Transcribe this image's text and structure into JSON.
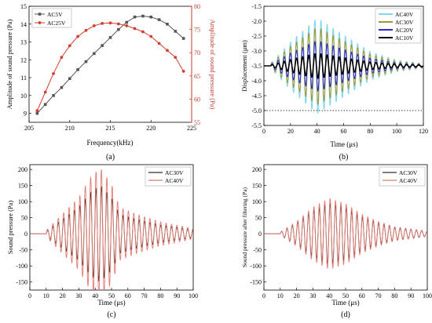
{
  "figure": {
    "background": "#ffffff"
  },
  "chart_data": [
    {
      "panel": "a",
      "type": "line",
      "caption": "(a)",
      "xlabel": "Frequency(kHz)",
      "ylabel": "Amplitude of sound pressure (Pa)",
      "ylabel_right": "Amplitude of sound pressure (Pa)",
      "xlim": [
        205,
        225
      ],
      "ylim": [
        8.5,
        15
      ],
      "ylim_right": [
        55,
        80
      ],
      "xticks": [
        "205",
        "210",
        "215",
        "220",
        "225"
      ],
      "yticks": [
        "9",
        "10",
        "11",
        "12",
        "13",
        "14",
        "15"
      ],
      "yticks_right": [
        "55",
        "60",
        "65",
        "70",
        "75",
        "80"
      ],
      "legend": "top-left",
      "series": [
        {
          "name": "AC5V",
          "axis": "left",
          "color": "#555555",
          "marker": "square",
          "x": [
            206,
            207,
            208,
            209,
            210,
            211,
            212,
            213,
            214,
            215,
            216,
            217,
            218,
            219,
            220,
            221,
            222,
            223,
            224
          ],
          "y": [
            9.0,
            9.5,
            10.0,
            10.45,
            10.95,
            11.45,
            11.9,
            12.35,
            12.8,
            13.25,
            13.7,
            14.1,
            14.4,
            14.45,
            14.4,
            14.25,
            14.0,
            13.6,
            13.2
          ]
        },
        {
          "name": "AC25V",
          "axis": "right",
          "color": "#d04030",
          "marker": "circle",
          "x": [
            206,
            207,
            208,
            209,
            210,
            211,
            212,
            213,
            214,
            215,
            216,
            217,
            218,
            219,
            220,
            221,
            222,
            223,
            224
          ],
          "y": [
            57.5,
            61.5,
            65.5,
            69.0,
            71.5,
            73.5,
            74.8,
            75.8,
            76.3,
            76.4,
            76.2,
            75.8,
            75.2,
            74.5,
            73.5,
            72.0,
            70.5,
            69.0,
            66.0
          ]
        }
      ]
    },
    {
      "panel": "b",
      "type": "line",
      "caption": "(b)",
      "xlabel": "Time (μs)",
      "ylabel": "Displacement (μm)",
      "xlim": [
        0,
        120
      ],
      "ylim": [
        -5.5,
        -1.5
      ],
      "xticks": [
        "0",
        "20",
        "40",
        "60",
        "80",
        "100",
        "120"
      ],
      "yticks": [
        "-1.5",
        "-2.0",
        "-2.5",
        "-3.0",
        "-3.5",
        "-4.0",
        "-4.5",
        "-5.0",
        "-5.5"
      ],
      "reference_line": {
        "y": -5.0,
        "style": "dotted"
      },
      "legend": "top-right",
      "signal": {
        "baseline": -3.5,
        "start": 5,
        "period": 4.6,
        "envelope": [
          [
            5,
            0.05
          ],
          [
            20,
            0.5
          ],
          [
            40,
            1.0
          ],
          [
            60,
            0.65
          ],
          [
            80,
            0.3
          ],
          [
            100,
            0.12
          ],
          [
            120,
            0.05
          ]
        ]
      },
      "series": [
        {
          "name": "AC40V",
          "color": "#7fd6f0",
          "amplitude": 1.6
        },
        {
          "name": "AC30V",
          "color": "#9b9a3a",
          "amplitude": 1.3
        },
        {
          "name": "AC20V",
          "color": "#2c2cc0",
          "amplitude": 0.85
        },
        {
          "name": "AC10V",
          "color": "#000000",
          "amplitude": 0.42
        }
      ]
    },
    {
      "panel": "c",
      "type": "line",
      "caption": "(c)",
      "xlabel": "Time (μs)",
      "ylabel": "Sound pressure (Pa)",
      "xlim": [
        0,
        100
      ],
      "ylim": [
        -175,
        215
      ],
      "xticks": [
        "0",
        "10",
        "20",
        "30",
        "40",
        "50",
        "60",
        "70",
        "80",
        "90",
        "100"
      ],
      "yticks": [
        "200",
        "150",
        "100",
        "50",
        "0",
        "-50",
        "-100",
        "-150"
      ],
      "legend": "top-right",
      "signal": {
        "start": 10,
        "period": 3.3,
        "envelope": [
          [
            10,
            0.05
          ],
          [
            20,
            0.3
          ],
          [
            30,
            0.55
          ],
          [
            37,
            0.85
          ],
          [
            43,
            1.0
          ],
          [
            50,
            0.75
          ],
          [
            55,
            0.4
          ],
          [
            65,
            0.3
          ],
          [
            80,
            0.18
          ],
          [
            100,
            0.08
          ]
        ]
      },
      "series": [
        {
          "name": "AC30V",
          "color": "#3a2a22",
          "amplitude": 150
        },
        {
          "name": "AC40V",
          "color": "#e07a72",
          "amplitude": 205
        }
      ]
    },
    {
      "panel": "d",
      "type": "line",
      "caption": "(d)",
      "xlabel": "Time (μs)",
      "ylabel": "Sound pressure after filtering (Pa)",
      "xlim": [
        0,
        100
      ],
      "ylim": [
        -175,
        215
      ],
      "xticks": [
        "0",
        "10",
        "20",
        "30",
        "40",
        "50",
        "60",
        "70",
        "80",
        "90",
        "100"
      ],
      "yticks": [
        "200",
        "150",
        "100",
        "50",
        "0",
        "-50",
        "-100",
        "-150"
      ],
      "legend": "top-right",
      "signal": {
        "start": 10,
        "period": 3.3,
        "envelope": [
          [
            10,
            0.05
          ],
          [
            20,
            0.35
          ],
          [
            30,
            0.75
          ],
          [
            40,
            1.0
          ],
          [
            50,
            0.85
          ],
          [
            60,
            0.55
          ],
          [
            70,
            0.35
          ],
          [
            80,
            0.2
          ],
          [
            100,
            0.08
          ]
        ]
      },
      "series": [
        {
          "name": "AC30V",
          "color": "#3a2a22",
          "amplitude": 95
        },
        {
          "name": "AC40V",
          "color": "#e07a72",
          "amplitude": 110
        }
      ]
    }
  ]
}
